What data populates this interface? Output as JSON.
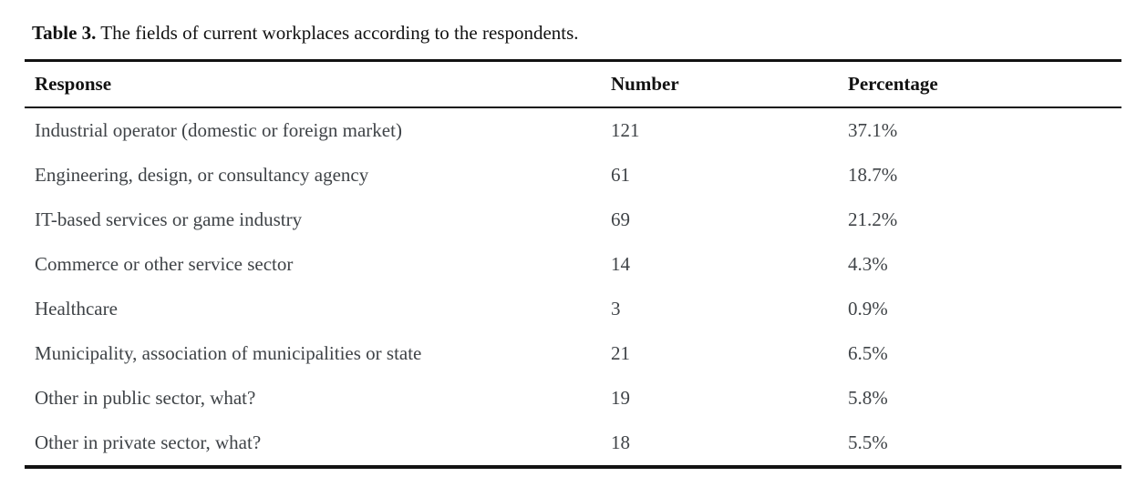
{
  "caption": {
    "label": "Table 3.",
    "text": "The fields of current workplaces according to the respondents."
  },
  "table": {
    "columns": [
      "Response",
      "Number",
      "Percentage"
    ],
    "rows": [
      {
        "response": "Industrial operator (domestic or foreign market)",
        "number": "121",
        "percentage": "37.1%"
      },
      {
        "response": "Engineering, design, or consultancy agency",
        "number": "61",
        "percentage": "18.7%"
      },
      {
        "response": "IT-based services or game industry",
        "number": "69",
        "percentage": "21.2%"
      },
      {
        "response": "Commerce or other service sector",
        "number": "14",
        "percentage": "4.3%"
      },
      {
        "response": "Healthcare",
        "number": "3",
        "percentage": "0.9%"
      },
      {
        "response": "Municipality, association of municipalities or state",
        "number": "21",
        "percentage": "6.5%"
      },
      {
        "response": "Other in public sector, what?",
        "number": "19",
        "percentage": "5.8%"
      },
      {
        "response": "Other in private sector, what?",
        "number": "18",
        "percentage": "5.5%"
      }
    ]
  },
  "colors": {
    "background": "#ffffff",
    "rule": "#121212",
    "heading_text": "#121212",
    "body_text": "#3f4347"
  }
}
